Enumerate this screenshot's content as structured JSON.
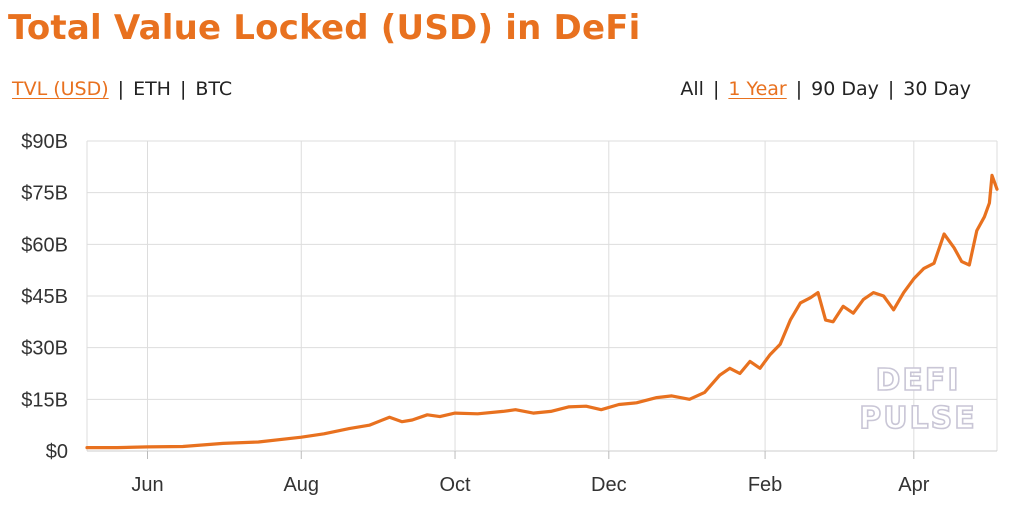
{
  "header": {
    "title": "Total Value Locked (USD) in DeFi"
  },
  "units_tabs": [
    {
      "label": "TVL (USD)",
      "active": true
    },
    {
      "label": "ETH",
      "active": false
    },
    {
      "label": "BTC",
      "active": false
    }
  ],
  "range_tabs": [
    {
      "label": "All",
      "active": false
    },
    {
      "label": "1 Year",
      "active": true
    },
    {
      "label": "90 Day",
      "active": false
    },
    {
      "label": "30 Day",
      "active": false
    }
  ],
  "watermark": {
    "line1": "DEFI",
    "line2": "PULSE"
  },
  "colors": {
    "accent": "#e8711f",
    "grid": "#dddddd",
    "text": "#222222"
  },
  "chart_data": {
    "type": "line",
    "title": "Total Value Locked (USD) in DeFi",
    "xlabel": "",
    "ylabel": "",
    "ylim": [
      0,
      90
    ],
    "y_ticks": [
      "$0",
      "$15B",
      "$30B",
      "$45B",
      "$60B",
      "$75B",
      "$90B"
    ],
    "y_tick_values": [
      0,
      15,
      30,
      45,
      60,
      75,
      90
    ],
    "x_tick_labels": [
      "Jun",
      "Aug",
      "Oct",
      "Dec",
      "Feb",
      "Apr"
    ],
    "x_tick_dates": [
      "2020-06-01",
      "2020-08-01",
      "2020-10-01",
      "2020-12-01",
      "2021-02-01",
      "2021-04-01"
    ],
    "xlim": [
      "2020-05-08",
      "2021-05-04"
    ],
    "grid": true,
    "series": [
      {
        "color": "#e8711f",
        "x": [
          "2020-05-08",
          "2020-05-20",
          "2020-06-01",
          "2020-06-15",
          "2020-07-01",
          "2020-07-15",
          "2020-08-01",
          "2020-08-10",
          "2020-08-20",
          "2020-08-28",
          "2020-09-05",
          "2020-09-10",
          "2020-09-14",
          "2020-09-20",
          "2020-09-25",
          "2020-10-01",
          "2020-10-10",
          "2020-10-20",
          "2020-10-25",
          "2020-11-01",
          "2020-11-08",
          "2020-11-15",
          "2020-11-22",
          "2020-11-28",
          "2020-12-05",
          "2020-12-12",
          "2020-12-20",
          "2020-12-26",
          "2021-01-02",
          "2021-01-08",
          "2021-01-14",
          "2021-01-18",
          "2021-01-22",
          "2021-01-26",
          "2021-01-30",
          "2021-02-03",
          "2021-02-07",
          "2021-02-11",
          "2021-02-15",
          "2021-02-19",
          "2021-02-22",
          "2021-02-25",
          "2021-02-28",
          "2021-03-04",
          "2021-03-08",
          "2021-03-12",
          "2021-03-16",
          "2021-03-20",
          "2021-03-24",
          "2021-03-28",
          "2021-04-01",
          "2021-04-05",
          "2021-04-09",
          "2021-04-13",
          "2021-04-17",
          "2021-04-20",
          "2021-04-23",
          "2021-04-26",
          "2021-04-29",
          "2021-05-01",
          "2021-05-02",
          "2021-05-04"
        ],
        "y": [
          1.0,
          1.0,
          1.2,
          1.3,
          2.2,
          2.6,
          4.0,
          5.0,
          6.5,
          7.5,
          9.8,
          8.5,
          9.0,
          10.5,
          10.0,
          11.0,
          10.8,
          11.5,
          12.0,
          11.0,
          11.5,
          12.8,
          13.0,
          12.0,
          13.5,
          14.0,
          15.5,
          16.0,
          15.0,
          17.0,
          22.0,
          24.0,
          22.5,
          26.0,
          24.0,
          28.0,
          31.0,
          38.0,
          43.0,
          44.5,
          46.0,
          38.0,
          37.5,
          42.0,
          40.0,
          44.0,
          46.0,
          45.0,
          41.0,
          46.0,
          50.0,
          53.0,
          54.5,
          63.0,
          59.0,
          55.0,
          54.0,
          64.0,
          68.0,
          72.0,
          80.0,
          76.0
        ]
      }
    ]
  }
}
